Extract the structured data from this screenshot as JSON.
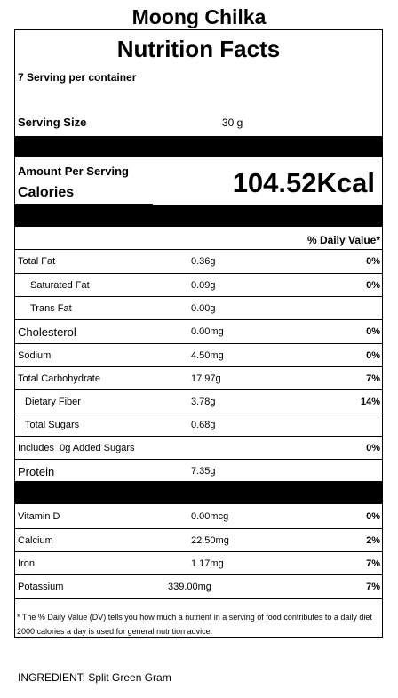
{
  "product_name": "Moong Chilka",
  "heading": "Nutrition Facts",
  "servings_per_container": "7 Serving per container",
  "serving_size": {
    "label": "Serving Size",
    "value": "30 g"
  },
  "amount_per_serving": "Amount Per Serving",
  "calories": {
    "label": "Calories",
    "value": "104.52Kcal"
  },
  "daily_value_header": "% Daily Value*",
  "nutrients": [
    {
      "name": "Total Fat",
      "amount": "0.36g",
      "dv": "0%"
    },
    {
      "name": "Saturated Fat",
      "amount": "0.09g",
      "dv": "0%"
    },
    {
      "name": "Trans Fat",
      "amount": "0.00g",
      "dv": ""
    },
    {
      "name": "Cholesterol",
      "amount": "0.00mg",
      "dv": "0%"
    },
    {
      "name": "Sodium",
      "amount": "4.50mg",
      "dv": "0%"
    },
    {
      "name": "Total Carbohydrate",
      "amount": "17.97g",
      "dv": "7%"
    },
    {
      "name": "Dietary Fiber",
      "amount": "3.78g",
      "dv": "14%"
    },
    {
      "name": "Total Sugars",
      "amount": "0.68g",
      "dv": ""
    },
    {
      "name": "Includes  0g Added Sugars",
      "amount": "",
      "dv": "0%"
    },
    {
      "name": "Protein",
      "amount": "7.35g",
      "dv": ""
    }
  ],
  "vitamins": [
    {
      "name": "Vitamin D",
      "amount": "0.00mcg",
      "dv": "0%"
    },
    {
      "name": "Calcium",
      "amount": "22.50mg",
      "dv": "2%"
    },
    {
      "name": "Iron",
      "amount": "1.17mg",
      "dv": "7%"
    },
    {
      "name": "Potassium",
      "amount": "339.00mg",
      "dv": "7%"
    }
  ],
  "footnote": "* The % Daily Value (DV) tells you how much a nutrient in a serving of food contributes to a daily diet 2000 calories a day is used for general nutrition advice.",
  "ingredient": "INGREDIENT: Split Green Gram"
}
